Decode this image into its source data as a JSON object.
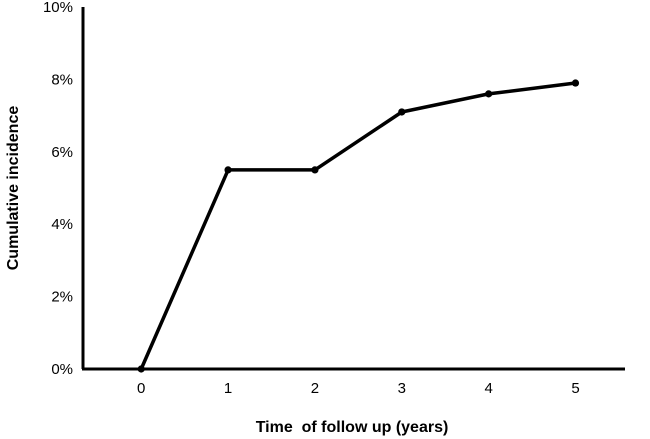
{
  "chart_data": {
    "type": "line",
    "title": "",
    "xlabel": "Time  of follow up (years)",
    "ylabel": "Cumulative incidence",
    "x": [
      0,
      1,
      2,
      3,
      4,
      5
    ],
    "series": [
      {
        "values": [
          0.0,
          5.5,
          5.5,
          7.1,
          7.6,
          7.9
        ]
      }
    ],
    "x_ticks": [
      "0",
      "1",
      "2",
      "3",
      "4",
      "5"
    ],
    "y_ticks": [
      0,
      2,
      4,
      6,
      8,
      10
    ],
    "y_tick_labels": [
      "0%",
      "2%",
      "4%",
      "6%",
      "8%",
      "10%"
    ],
    "xlim": [
      -0.67,
      5.57
    ],
    "ylim": [
      0,
      10
    ],
    "grid": false,
    "colors": {
      "line": "#000000",
      "axis": "#000000"
    }
  }
}
